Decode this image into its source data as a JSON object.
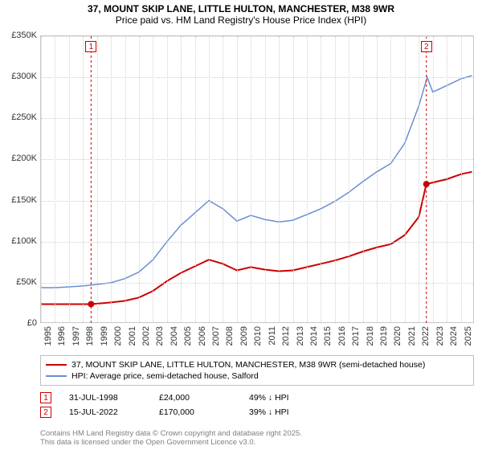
{
  "title": {
    "line1": "37, MOUNT SKIP LANE, LITTLE HULTON, MANCHESTER, M38 9WR",
    "line2": "Price paid vs. HM Land Registry's House Price Index (HPI)",
    "fontsize": 12
  },
  "chart": {
    "type": "line",
    "background_color": "#ffffff",
    "border_color": "#c8c8c8",
    "grid_color": "#d0d0d0",
    "xlim": [
      1995,
      2026
    ],
    "ylim": [
      0,
      350000
    ],
    "ytick_step": 50000,
    "yticks": [
      "£0",
      "£50K",
      "£100K",
      "£150K",
      "£200K",
      "£250K",
      "£300K",
      "£350K"
    ],
    "xticks": [
      1995,
      1996,
      1997,
      1998,
      1999,
      2000,
      2001,
      2002,
      2003,
      2004,
      2005,
      2006,
      2007,
      2008,
      2009,
      2010,
      2011,
      2012,
      2013,
      2014,
      2015,
      2016,
      2017,
      2018,
      2019,
      2020,
      2021,
      2022,
      2023,
      2024,
      2025
    ],
    "label_fontsize": 11,
    "series": {
      "price_paid": {
        "label": "37, MOUNT SKIP LANE, LITTLE HULTON, MANCHESTER, M38 9WR (semi-detached house)",
        "color": "#cc0000",
        "line_width": 2,
        "points": [
          [
            1995,
            24000
          ],
          [
            1996,
            24000
          ],
          [
            1997,
            24000
          ],
          [
            1998,
            24000
          ],
          [
            1998.58,
            24000
          ],
          [
            1999,
            24500
          ],
          [
            2000,
            26000
          ],
          [
            2001,
            28000
          ],
          [
            2002,
            32000
          ],
          [
            2003,
            40000
          ],
          [
            2004,
            52000
          ],
          [
            2005,
            62000
          ],
          [
            2006,
            70000
          ],
          [
            2007,
            78000
          ],
          [
            2008,
            73000
          ],
          [
            2009,
            65000
          ],
          [
            2010,
            69000
          ],
          [
            2011,
            66000
          ],
          [
            2012,
            64000
          ],
          [
            2013,
            65000
          ],
          [
            2014,
            69000
          ],
          [
            2015,
            73000
          ],
          [
            2016,
            77000
          ],
          [
            2017,
            82000
          ],
          [
            2018,
            88000
          ],
          [
            2019,
            93000
          ],
          [
            2020,
            97000
          ],
          [
            2021,
            108000
          ],
          [
            2022,
            130000
          ],
          [
            2022.54,
            170000
          ],
          [
            2023,
            172000
          ],
          [
            2024,
            176000
          ],
          [
            2025,
            182000
          ],
          [
            2025.8,
            185000
          ]
        ]
      },
      "hpi": {
        "label": "HPI: Average price, semi-detached house, Salford",
        "color": "#6a8fd0",
        "line_width": 1.5,
        "points": [
          [
            1995,
            44000
          ],
          [
            1996,
            44000
          ],
          [
            1997,
            45000
          ],
          [
            1998,
            46000
          ],
          [
            1999,
            48000
          ],
          [
            2000,
            50000
          ],
          [
            2001,
            55000
          ],
          [
            2002,
            63000
          ],
          [
            2003,
            78000
          ],
          [
            2004,
            100000
          ],
          [
            2005,
            120000
          ],
          [
            2006,
            135000
          ],
          [
            2007,
            150000
          ],
          [
            2008,
            140000
          ],
          [
            2009,
            125000
          ],
          [
            2010,
            132000
          ],
          [
            2011,
            127000
          ],
          [
            2012,
            124000
          ],
          [
            2013,
            126000
          ],
          [
            2014,
            133000
          ],
          [
            2015,
            140000
          ],
          [
            2016,
            149000
          ],
          [
            2017,
            160000
          ],
          [
            2018,
            173000
          ],
          [
            2019,
            185000
          ],
          [
            2020,
            195000
          ],
          [
            2021,
            220000
          ],
          [
            2022,
            265000
          ],
          [
            2022.6,
            300000
          ],
          [
            2023,
            282000
          ],
          [
            2024,
            290000
          ],
          [
            2025,
            298000
          ],
          [
            2025.8,
            302000
          ]
        ]
      }
    },
    "sale_markers": [
      {
        "num": "1",
        "x": 1998.58,
        "y": 24000
      },
      {
        "num": "2",
        "x": 2022.54,
        "y": 170000
      }
    ]
  },
  "legend": {
    "series1_label": "37, MOUNT SKIP LANE, LITTLE HULTON, MANCHESTER, M38 9WR (semi-detached house)",
    "series1_color": "#cc0000",
    "series2_label": "HPI: Average price, semi-detached house, Salford",
    "series2_color": "#6a8fd0"
  },
  "sales": [
    {
      "num": "1",
      "date": "31-JUL-1998",
      "price": "£24,000",
      "diff": "49% ↓ HPI"
    },
    {
      "num": "2",
      "date": "15-JUL-2022",
      "price": "£170,000",
      "diff": "39% ↓ HPI"
    }
  ],
  "attribution": {
    "line1": "Contains HM Land Registry data © Crown copyright and database right 2025.",
    "line2": "This data is licensed under the Open Government Licence v3.0."
  }
}
